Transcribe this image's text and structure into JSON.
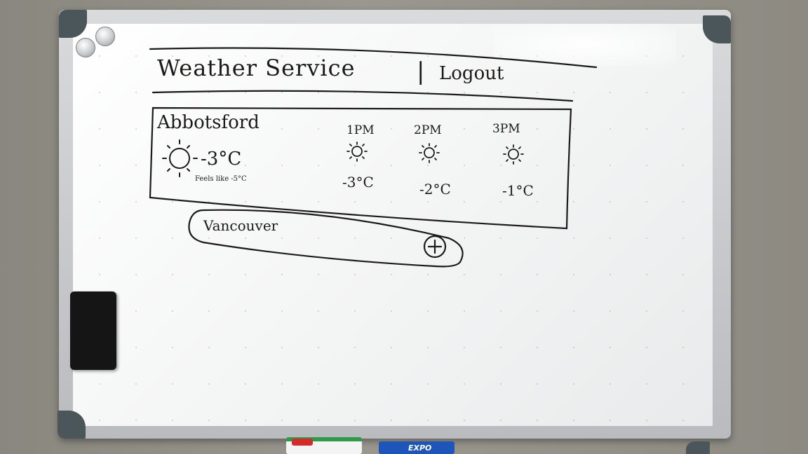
{
  "app": {
    "title": "Weather Service",
    "separator": "|",
    "logout_label": "Logout"
  },
  "current": {
    "city": "Abbotsford",
    "icon": "sun-icon",
    "temperature": "-3°C",
    "feels_like": "Feels like -5°C"
  },
  "hourly": [
    {
      "time": "1PM",
      "icon": "sun-icon",
      "temperature": "-3°C"
    },
    {
      "time": "2PM",
      "icon": "sun-icon",
      "temperature": "-2°C"
    },
    {
      "time": "3PM",
      "icon": "sun-icon",
      "temperature": "-1°C"
    }
  ],
  "add_city": {
    "value": "Vancouver",
    "button_icon": "plus-circle-icon"
  },
  "markers": {
    "brand": "EXPO"
  },
  "colors": {
    "ink": "#1b1a18",
    "board": "#ffffff",
    "frame": "#c8c9cb",
    "corner": "#4a5659"
  }
}
